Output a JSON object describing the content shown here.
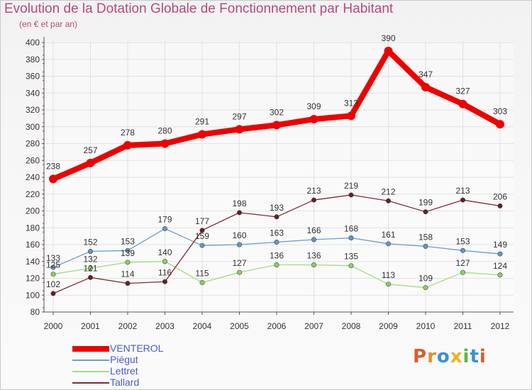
{
  "title": "Evolution de la Dotation Globale de Fonctionnement par Habitant",
  "subtitle": "(en € et par an)",
  "logo": {
    "text": "Proxiti",
    "letters": [
      {
        "char": "P",
        "color": "#e05a2a"
      },
      {
        "char": "r",
        "color": "#e98b2a"
      },
      {
        "char": "o",
        "color": "#3a8fd8"
      },
      {
        "char": "x",
        "color": "#f0b020"
      },
      {
        "char": "i",
        "color": "#5ab84a"
      },
      {
        "char": "t",
        "color": "#3a8fd8"
      },
      {
        "char": "i",
        "color": "#e05a2a"
      }
    ]
  },
  "chart_data": {
    "type": "line",
    "title": "Evolution de la Dotation Globale de Fonctionnement par Habitant",
    "subtitle": "(en € et par an)",
    "xlabel": "",
    "ylabel": "",
    "ylim": [
      80,
      400
    ],
    "yticks": [
      80,
      100,
      120,
      140,
      160,
      180,
      200,
      220,
      240,
      260,
      280,
      300,
      320,
      340,
      360,
      380,
      400
    ],
    "categories": [
      "2000",
      "2001",
      "2002",
      "2003",
      "2004",
      "2005",
      "2006",
      "2007",
      "2008",
      "2009",
      "2010",
      "2011",
      "2012"
    ],
    "grid": true,
    "legend_position": "bottom-left",
    "series": [
      {
        "name": "VENTEROL",
        "color": "#ee0000",
        "marker": "#ee0000",
        "emphasis": true,
        "values": [
          238,
          257,
          278,
          280,
          291,
          297,
          302,
          309,
          313,
          390,
          347,
          327,
          303
        ]
      },
      {
        "name": "Piégut",
        "color": "#6b9fcf",
        "marker": "#5f98d0",
        "values": [
          133,
          152,
          153,
          179,
          159,
          160,
          163,
          166,
          168,
          161,
          158,
          153,
          149
        ]
      },
      {
        "name": "Lettret",
        "color": "#a4dc84",
        "marker": "#86d45e",
        "values": [
          125,
          132,
          139,
          140,
          115,
          127,
          136,
          136,
          135,
          113,
          109,
          127,
          124
        ]
      },
      {
        "name": "Tallard",
        "color": "#7a2e34",
        "marker": "#6a1e22",
        "values": [
          102,
          121,
          114,
          116,
          177,
          198,
          193,
          213,
          219,
          212,
          199,
          213,
          206
        ]
      }
    ]
  }
}
